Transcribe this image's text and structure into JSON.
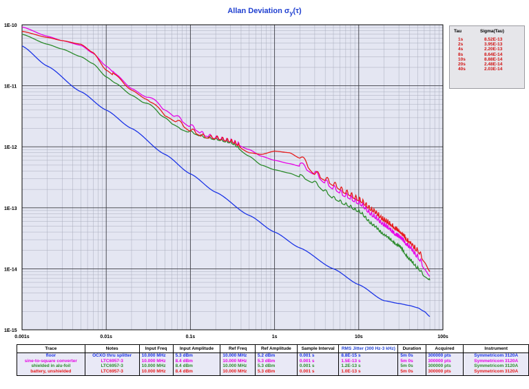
{
  "chart_data": {
    "type": "line",
    "title_main": "Allan Deviation σ",
    "title_sub": "y",
    "title_tail": "(τ)",
    "x_scale": "log",
    "y_scale": "log",
    "xlim": [
      0.001,
      100
    ],
    "ylim": [
      1e-15,
      1e-10
    ],
    "grid": true,
    "x_ticks": [
      {
        "value": 0.001,
        "label": "0.001s"
      },
      {
        "value": 0.01,
        "label": "0.01s"
      },
      {
        "value": 0.1,
        "label": "0.1s"
      },
      {
        "value": 1,
        "label": "1s"
      },
      {
        "value": 10,
        "label": "10s"
      },
      {
        "value": 100,
        "label": "100s"
      }
    ],
    "y_ticks": [
      {
        "value": 1e-10,
        "label": "1E-10"
      },
      {
        "value": 1e-11,
        "label": "1E-11"
      },
      {
        "value": 1e-12,
        "label": "1E-12"
      },
      {
        "value": 1e-13,
        "label": "1E-13"
      },
      {
        "value": 1e-14,
        "label": "1E-14"
      },
      {
        "value": 1e-15,
        "label": "1E-15"
      }
    ],
    "series": [
      {
        "color": "#1a33e6",
        "x": [
          0.001,
          0.002,
          0.005,
          0.01,
          0.02,
          0.05,
          0.1,
          0.2,
          0.5,
          1,
          2,
          5,
          10,
          20,
          30,
          40,
          50,
          60,
          70
        ],
        "y": [
          4.5e-11,
          2.1e-11,
          8e-12,
          4e-12,
          2e-12,
          7.5e-13,
          3.6e-13,
          1.8e-13,
          7.5e-14,
          4e-14,
          2.2e-14,
          1e-14,
          5.5e-15,
          3e-15,
          2.7e-15,
          2.5e-15,
          2.3e-15,
          2e-15,
          1.65e-15
        ]
      },
      {
        "color": "#e600e6",
        "x": [
          0.001,
          0.002,
          0.003,
          0.005,
          0.007,
          0.01,
          0.013,
          0.02,
          0.03,
          0.05,
          0.07,
          0.1,
          0.15,
          0.2,
          0.3,
          0.5,
          0.7,
          1,
          1.5,
          2,
          3,
          4,
          5,
          7,
          10,
          15,
          20,
          30,
          40,
          50,
          60,
          70
        ],
        "y": [
          9.2e-11,
          6.5e-11,
          5.5e-11,
          4.6e-11,
          3.4e-11,
          2.1e-11,
          1.55e-11,
          9e-12,
          6.5e-12,
          4e-12,
          2.9e-12,
          2.1e-12,
          1.5e-12,
          1.35e-12,
          1.2e-12,
          9e-13,
          7e-13,
          6e-13,
          5.3e-13,
          4.8e-13,
          3.5e-13,
          2.5e-13,
          2e-13,
          1.5e-13,
          1.15e-13,
          7e-14,
          5e-14,
          3.2e-14,
          2.2e-14,
          1.5e-14,
          1e-14,
          7.5e-15
        ]
      },
      {
        "color": "#2a8a2a",
        "x": [
          0.001,
          0.002,
          0.003,
          0.005,
          0.007,
          0.01,
          0.013,
          0.02,
          0.03,
          0.05,
          0.07,
          0.1,
          0.15,
          0.2,
          0.3,
          0.5,
          0.7,
          1,
          1.5,
          2,
          3,
          4,
          5,
          7,
          10,
          15,
          20,
          30,
          40,
          50,
          60,
          70
        ],
        "y": [
          7e-11,
          4.8e-11,
          4e-11,
          3e-11,
          2.3e-11,
          1.4e-11,
          1.1e-11,
          7e-12,
          5e-12,
          3e-12,
          2e-12,
          1.7e-12,
          1.4e-12,
          1.3e-12,
          1.15e-12,
          7e-13,
          5e-13,
          4.2e-13,
          3.7e-13,
          3.2e-13,
          2.5e-13,
          1.8e-13,
          1.4e-13,
          1.1e-13,
          8.5e-14,
          5e-14,
          3.5e-14,
          2.3e-14,
          1.4e-14,
          1e-14,
          7.5e-15,
          6.5e-15
        ]
      },
      {
        "color": "#e61a1a",
        "x": [
          0.001,
          0.002,
          0.003,
          0.005,
          0.007,
          0.01,
          0.013,
          0.02,
          0.03,
          0.05,
          0.07,
          0.1,
          0.15,
          0.2,
          0.3,
          0.5,
          0.7,
          1,
          1.5,
          2,
          3,
          4,
          5,
          7,
          10,
          15,
          20,
          30,
          40,
          50,
          60,
          70
        ],
        "y": [
          7.8e-11,
          6.2e-11,
          5.5e-11,
          4.8e-11,
          3.5e-11,
          1.8e-11,
          1.4e-11,
          8.5e-12,
          6e-12,
          3.2e-12,
          2.5e-12,
          1.8e-12,
          1.4e-12,
          1.35e-12,
          1.2e-12,
          8e-13,
          7.5e-13,
          8.5e-13,
          8e-13,
          6.5e-13,
          3.5e-13,
          2.8e-13,
          2.3e-13,
          1.7e-13,
          1.3e-13,
          8.5e-14,
          6e-14,
          4e-14,
          2.6e-14,
          1.9e-14,
          1.3e-14,
          9e-15
        ]
      }
    ]
  },
  "sigma_table": {
    "headers": [
      "Tau",
      "Sigma(Tau)"
    ],
    "rows": [
      [
        "1s",
        "8.52E-13"
      ],
      [
        "2s",
        "3.95E-13"
      ],
      [
        "4s",
        "2.20E-13"
      ],
      [
        "8s",
        "8.64E-14"
      ],
      [
        "10s",
        "8.88E-14"
      ],
      [
        "20s",
        "2.48E-14"
      ],
      [
        "40s",
        "2.03E-14"
      ]
    ]
  },
  "info_table": {
    "headers": [
      "Trace",
      "Notes",
      "Input Freq",
      "Input Amplitude",
      "Ref Freq",
      "Ref Amplitude",
      "Sample Interval",
      "RMS Jitter (300 Hz-3 kHz)",
      "Duration",
      "Acquired",
      "Instrument"
    ],
    "rows": [
      {
        "color": "#1a33e6",
        "cells": [
          "floor",
          "OCXO thru splitter",
          "10.000 MHz",
          "5.3 dBm",
          "10.000 MHz",
          "5.2 dBm",
          "0.001 s",
          "8.8E-15 s",
          "5m 0s",
          "300000 pts",
          "Symmetricom 3120A"
        ]
      },
      {
        "color": "#e600e6",
        "cells": [
          "sine-to-square converter",
          "LTC6957-3",
          "10.000 MHz",
          "8.4 dBm",
          "10.000 MHz",
          "5.3 dBm",
          "0.001 s",
          "1.5E-13 s",
          "5m 0s",
          "300000 pts",
          "Symmetricom 3120A"
        ]
      },
      {
        "color": "#2a8a2a",
        "cells": [
          "shielded in alu-foil",
          "LTC6957-3",
          "10.000 MHz",
          "8.4 dBm",
          "10.000 MHz",
          "5.3 dBm",
          "0.001 s",
          "1.2E-13 s",
          "5m 0s",
          "300000 pts",
          "Symmetricom 3120A"
        ]
      },
      {
        "color": "#e61a1a",
        "cells": [
          "battery, unshielded",
          "LTC6957-3",
          "10.000 MHz",
          "8.4 dBm",
          "10.000 MHz",
          "5.3 dBm",
          "0.001 s",
          "1.0E-13 s",
          "5m 0s",
          "300000 pts",
          "Symmetricom 3120A"
        ]
      }
    ]
  }
}
